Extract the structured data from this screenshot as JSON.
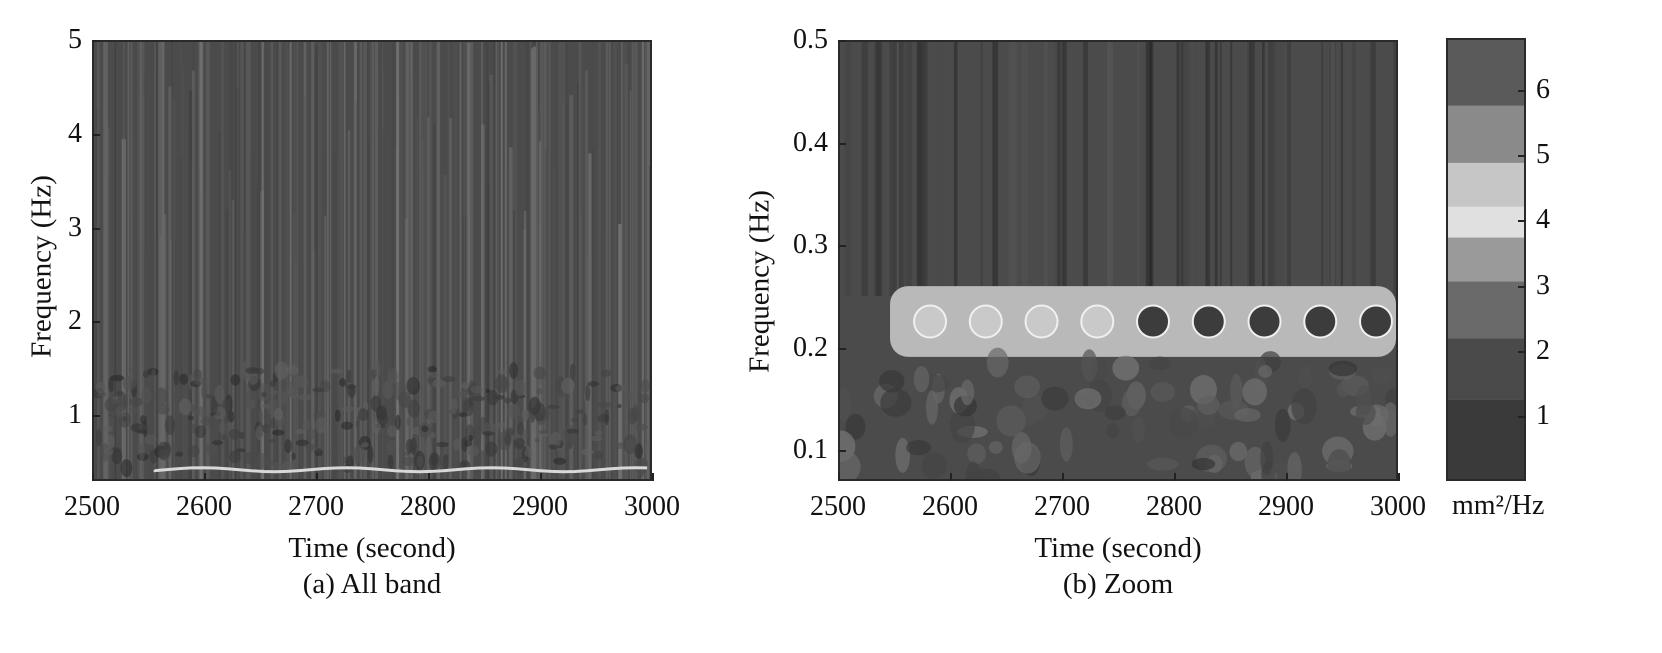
{
  "chart_data": [
    {
      "type": "heatmap",
      "caption": "(a) All band",
      "xlabel": "Time (second)",
      "ylabel": "Frequency (Hz)",
      "xlim": [
        2500,
        3000
      ],
      "ylim": [
        0.3,
        5
      ],
      "x_ticks": [
        "2500",
        "2600",
        "2700",
        "2800",
        "2900",
        "3000"
      ],
      "y_ticks": [
        "1",
        "2",
        "3",
        "4",
        "5"
      ],
      "features": [
        {
          "kind": "band",
          "freq": 0.4,
          "from": 2555,
          "to": 3000,
          "intensity": "high"
        }
      ],
      "colormap": "gray"
    },
    {
      "type": "heatmap",
      "caption": "(b) Zoom",
      "xlabel": "Time (second)",
      "ylabel": "Frequency (Hz)",
      "xlim": [
        2500,
        3000
      ],
      "ylim": [
        0.07,
        0.5
      ],
      "x_ticks": [
        "2500",
        "2600",
        "2700",
        "2800",
        "2900",
        "3000"
      ],
      "y_ticks": [
        "0.1",
        "0.2",
        "0.3",
        "0.4",
        "0.5"
      ],
      "features": [
        {
          "kind": "band",
          "freq_low": 0.2,
          "freq_high": 0.25,
          "from": 2545,
          "to": 3000,
          "intensity": "high"
        }
      ],
      "colorbar": {
        "label": "mm²/Hz",
        "ticks": [
          "1",
          "2",
          "3",
          "4",
          "5",
          "6"
        ]
      },
      "colormap": "gray"
    }
  ]
}
